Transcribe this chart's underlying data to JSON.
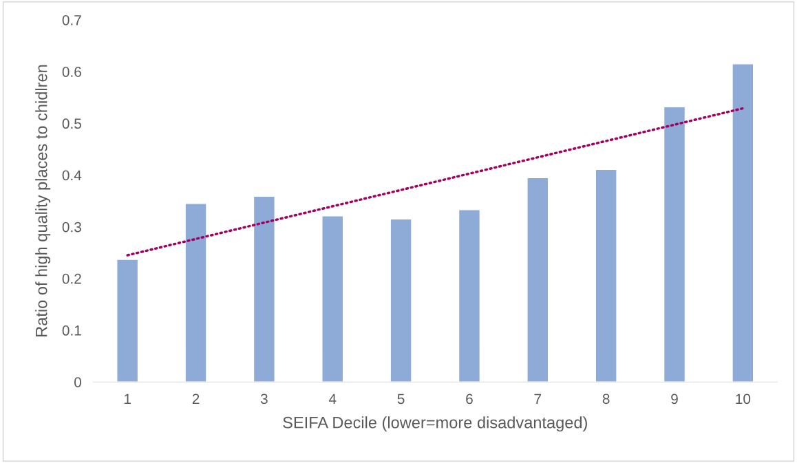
{
  "chart_data": {
    "type": "bar",
    "xlabel": "SEIFA Decile (lower=more disadvantaged)",
    "ylabel": "Ratio of high quality places to chidlren",
    "categories": [
      "1",
      "2",
      "3",
      "4",
      "5",
      "6",
      "7",
      "8",
      "9",
      "10"
    ],
    "series": [
      {
        "color": "#8eaad6",
        "values": [
          0.237,
          0.345,
          0.359,
          0.321,
          0.315,
          0.333,
          0.395,
          0.411,
          0.532,
          0.615
        ]
      },
      {
        "type": "line",
        "color": "#a0005f",
        "line_style": "dotted",
        "x": [
          "1",
          "10"
        ],
        "values": [
          0.245,
          0.529
        ]
      }
    ],
    "ylim": [
      0,
      0.7
    ],
    "yticks": [
      0,
      0.1,
      0.2,
      0.3,
      0.4,
      0.5,
      0.6,
      0.7
    ],
    "grid": false,
    "legend": false
  }
}
